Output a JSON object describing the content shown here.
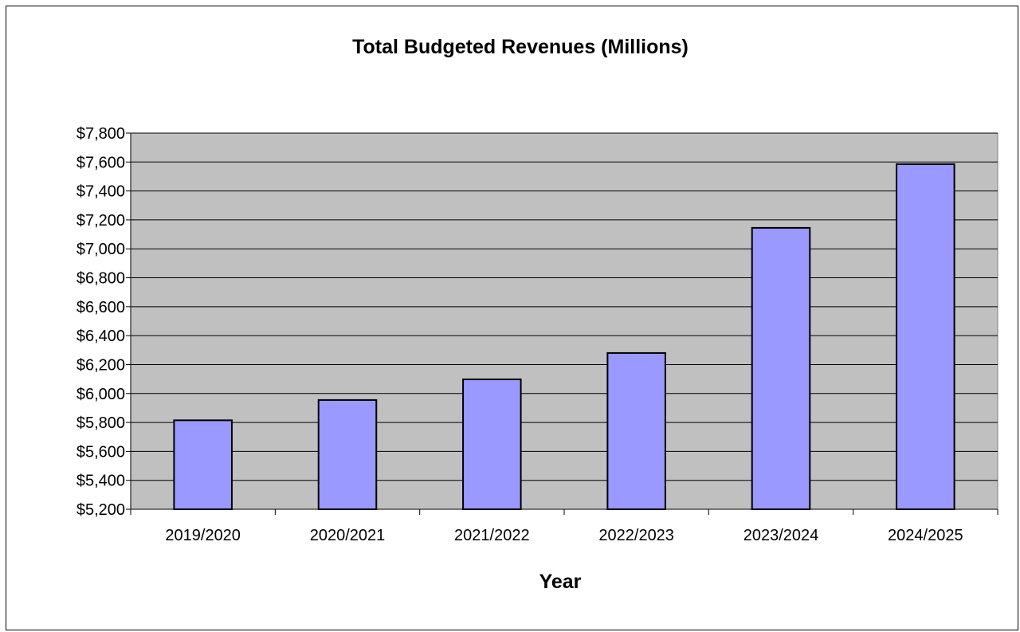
{
  "chart_data": {
    "type": "bar",
    "title": "Total Budgeted Revenues (Millions)",
    "xlabel": "Year",
    "ylabel": "",
    "categories": [
      "2019/2020",
      "2020/2021",
      "2021/2022",
      "2022/2023",
      "2023/2024",
      "2024/2025"
    ],
    "values": [
      5815,
      5955,
      6098,
      6280,
      7145,
      7585
    ],
    "ylim": [
      5200,
      7800
    ],
    "yticks": [
      5200,
      5400,
      5600,
      5800,
      6000,
      6200,
      6400,
      6600,
      6800,
      7000,
      7200,
      7400,
      7600,
      7800
    ],
    "ytick_labels": [
      "$5,200",
      "$5,400",
      "$5,600",
      "$5,800",
      "$6,000",
      "$6,200",
      "$6,400",
      "$6,600",
      "$6,800",
      "$7,000",
      "$7,200",
      "$7,400",
      "$7,600",
      "$7,800"
    ],
    "grid": true,
    "legend": "none",
    "colors": {
      "bar_fill": "#9999ff",
      "bar_stroke": "#000000",
      "plot_background": "#c0c0c0",
      "gridline": "#000000"
    }
  }
}
